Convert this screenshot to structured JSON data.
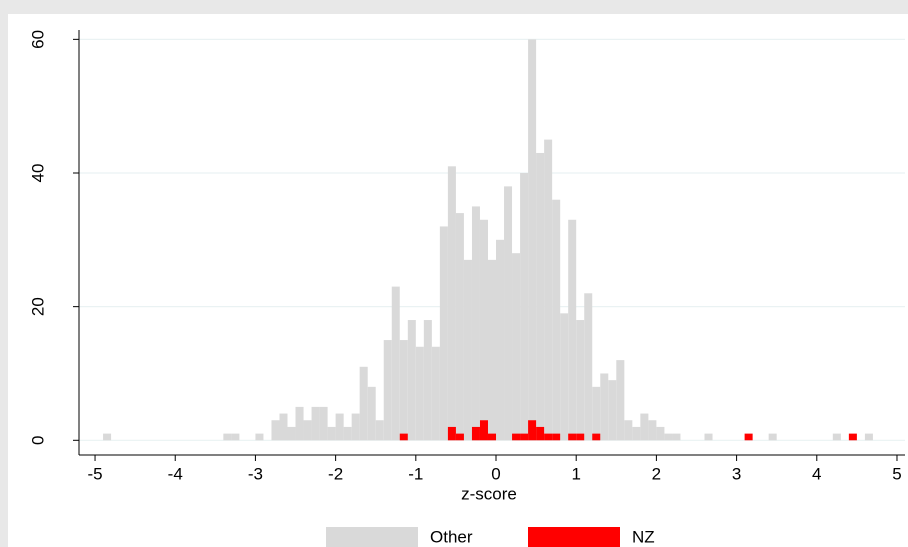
{
  "chart_data": {
    "type": "histogram",
    "xlabel": "z-score",
    "bins": [
      -5,
      -4.9,
      -4.8,
      -4.7,
      -4.6,
      -4.5,
      -4.4,
      -4.3,
      -4.2,
      -4.1,
      -4,
      -3.9,
      -3.8,
      -3.7,
      -3.6,
      -3.5,
      -3.4,
      -3.3,
      -3.2,
      -3.1,
      -3,
      -2.9,
      -2.8,
      -2.7,
      -2.6,
      -2.5,
      -2.4,
      -2.3,
      -2.2,
      -2.1,
      -2,
      -1.9,
      -1.8,
      -1.7,
      -1.6,
      -1.5,
      -1.4,
      -1.3,
      -1.2,
      -1.1,
      -1,
      -0.9,
      -0.8,
      -0.7,
      -0.6,
      -0.5,
      -0.4,
      -0.3,
      -0.2,
      -0.1,
      0,
      0.1,
      0.2,
      0.3,
      0.4,
      0.5,
      0.6,
      0.7,
      0.8,
      0.9,
      1,
      1.1,
      1.2,
      1.3,
      1.4,
      1.5,
      1.6,
      1.7,
      1.8,
      1.9,
      2,
      2.1,
      2.2,
      2.3,
      2.4,
      2.5,
      2.6,
      2.7,
      2.8,
      2.9,
      3,
      3.1,
      3.2,
      3.3,
      3.4,
      3.5,
      3.6,
      3.7,
      3.8,
      3.9,
      4,
      4.1,
      4.2,
      4.3,
      4.4,
      4.5,
      4.6,
      4.7,
      4.8,
      4.9,
      5
    ],
    "series": [
      {
        "name": "Other",
        "color": "#d9d9d9",
        "values": [
          0,
          1,
          0,
          0,
          0,
          0,
          0,
          0,
          0,
          0,
          0,
          0,
          0,
          0,
          0,
          0,
          1,
          1,
          0,
          0,
          1,
          0,
          3,
          4,
          2,
          5,
          3,
          5,
          5,
          2,
          4,
          2,
          4,
          11,
          8,
          3,
          15,
          23,
          15,
          18,
          14,
          18,
          14,
          32,
          41,
          34,
          27,
          35,
          33,
          27,
          30,
          38,
          28,
          40,
          60,
          43,
          45,
          36,
          19,
          33,
          18,
          22,
          8,
          10,
          9,
          12,
          3,
          2,
          4,
          3,
          2,
          1,
          1,
          0,
          0,
          0,
          1,
          0,
          0,
          0,
          0,
          0,
          0,
          0,
          1,
          0,
          0,
          0,
          0,
          0,
          0,
          0,
          1,
          0,
          0,
          0,
          1,
          0,
          0,
          0
        ]
      },
      {
        "name": "NZ",
        "color": "#ff0000",
        "values": [
          0,
          0,
          0,
          0,
          0,
          0,
          0,
          0,
          0,
          0,
          0,
          0,
          0,
          0,
          0,
          0,
          0,
          0,
          0,
          0,
          0,
          0,
          0,
          0,
          0,
          0,
          0,
          0,
          0,
          0,
          0,
          0,
          0,
          0,
          0,
          0,
          0,
          0,
          1,
          0,
          0,
          0,
          0,
          0,
          2,
          1,
          0,
          2,
          3,
          1,
          0,
          0,
          1,
          1,
          3,
          2,
          1,
          1,
          0,
          1,
          1,
          0,
          1,
          0,
          0,
          0,
          0,
          0,
          0,
          0,
          0,
          0,
          0,
          0,
          0,
          0,
          0,
          0,
          0,
          0,
          0,
          1,
          0,
          0,
          0,
          0,
          0,
          0,
          0,
          0,
          0,
          0,
          0,
          0,
          1,
          0,
          0,
          0,
          0,
          0
        ]
      }
    ],
    "xlim": [
      -5.2,
      5.1
    ],
    "xticks": [
      -5,
      -4,
      -3,
      -2,
      -1,
      0,
      1,
      2,
      3,
      4,
      5
    ],
    "ylim": [
      -2.2,
      61.4
    ],
    "yticks": [
      0,
      20,
      40,
      60
    ],
    "grid": true,
    "legend": "bottom"
  }
}
